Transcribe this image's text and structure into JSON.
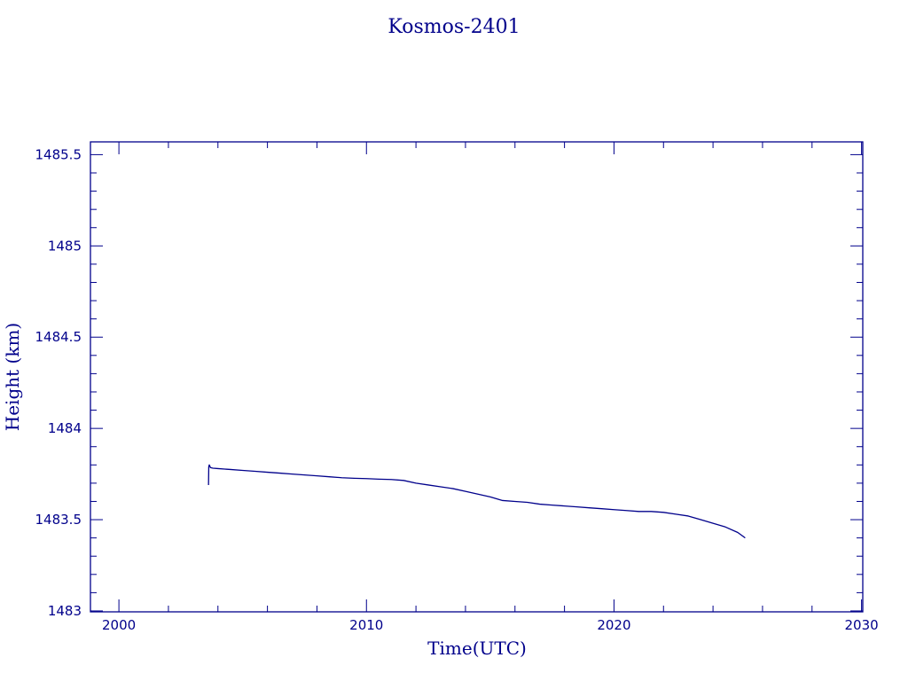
{
  "chart_data": {
    "type": "line",
    "title": "Kosmos-2401",
    "xlabel": "Time(UTC)",
    "ylabel": "Height (km)",
    "xlim": [
      1998.85,
      2030.05
    ],
    "ylim": [
      1482.995,
      1485.57
    ],
    "x_ticks": [
      2000,
      2010,
      2020,
      2030
    ],
    "x_tick_labels": [
      "2000",
      "2010",
      "2020",
      "2030"
    ],
    "y_ticks": [
      1483,
      1483.5,
      1484,
      1484.5,
      1485,
      1485.5
    ],
    "y_tick_labels": [
      "1483",
      "1483.5",
      "1484",
      "1484.5",
      "1485",
      "1485.5"
    ],
    "grid": false,
    "legend": "none",
    "series": [
      {
        "color": "#00008b",
        "x": [
          2003.62,
          2003.63,
          2003.65,
          2003.7,
          2003.8,
          2004.0,
          2004.5,
          2005.0,
          2005.5,
          2006.0,
          2006.5,
          2007.0,
          2007.5,
          2008.0,
          2008.5,
          2009.0,
          2009.5,
          2010.0,
          2010.5,
          2011.0,
          2011.5,
          2012.0,
          2012.5,
          2013.0,
          2013.5,
          2014.0,
          2014.5,
          2015.0,
          2015.5,
          2016.0,
          2016.5,
          2017.0,
          2017.5,
          2018.0,
          2018.5,
          2019.0,
          2019.5,
          2020.0,
          2020.5,
          2021.0,
          2021.5,
          2022.0,
          2022.5,
          2023.0,
          2023.5,
          2024.0,
          2024.5,
          2025.0,
          2025.3
        ],
        "y": [
          1483.69,
          1483.79,
          1483.8,
          1483.785,
          1483.782,
          1483.78,
          1483.775,
          1483.77,
          1483.765,
          1483.76,
          1483.755,
          1483.75,
          1483.745,
          1483.74,
          1483.735,
          1483.73,
          1483.727,
          1483.725,
          1483.722,
          1483.72,
          1483.715,
          1483.7,
          1483.69,
          1483.68,
          1483.67,
          1483.655,
          1483.64,
          1483.625,
          1483.605,
          1483.6,
          1483.595,
          1483.585,
          1483.58,
          1483.575,
          1483.57,
          1483.565,
          1483.56,
          1483.555,
          1483.55,
          1483.545,
          1483.545,
          1483.54,
          1483.53,
          1483.52,
          1483.5,
          1483.48,
          1483.46,
          1483.43,
          1483.4
        ]
      }
    ]
  }
}
